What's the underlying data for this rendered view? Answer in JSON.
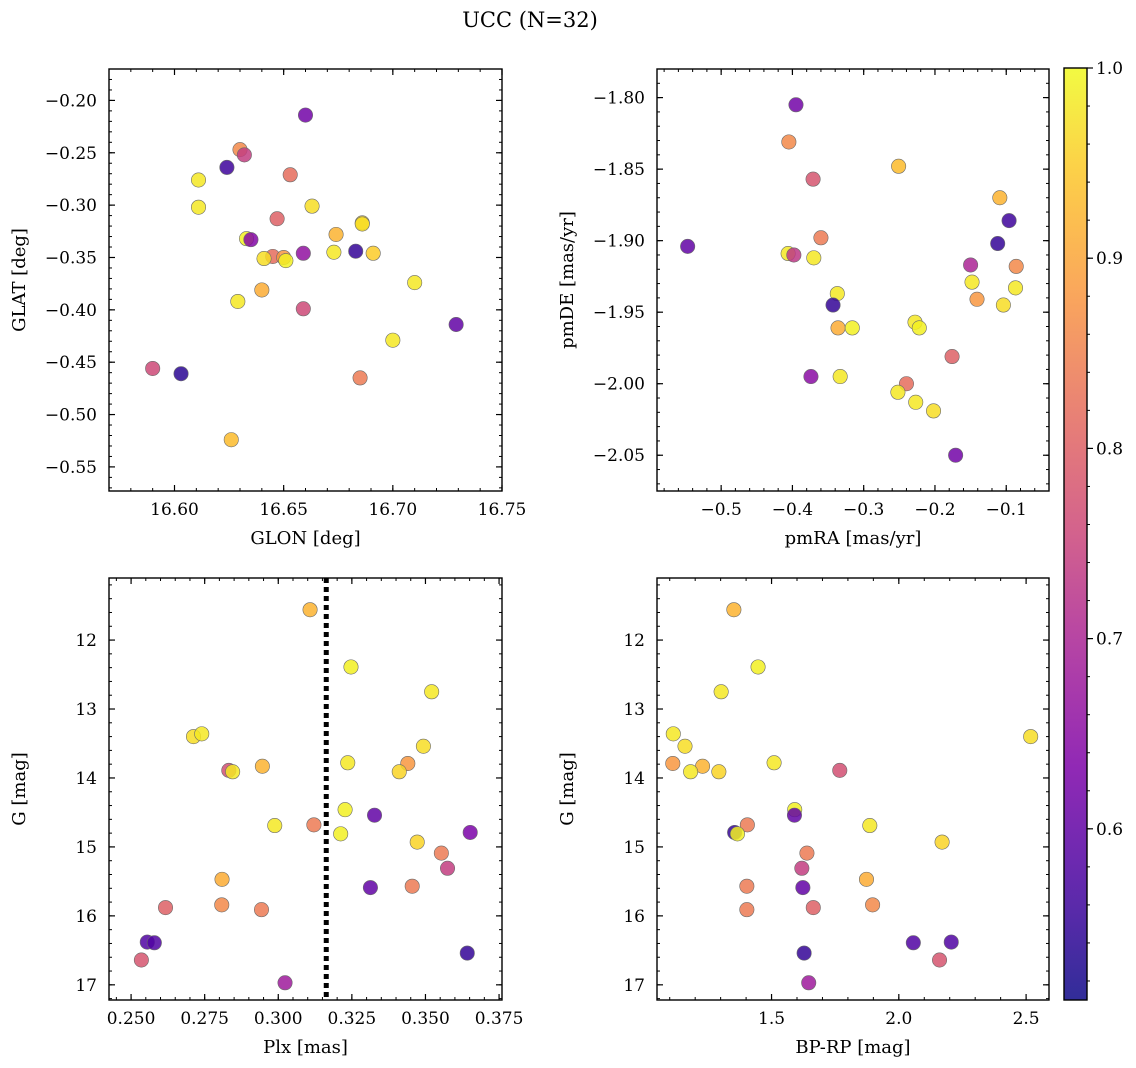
{
  "figure": {
    "title": "UCC (N=32)"
  },
  "colorbar": {
    "min": 0.51,
    "max": 1.0,
    "ticks": [
      0.6,
      0.7,
      0.8,
      0.9,
      1.0
    ],
    "tick_labels": [
      "0.6",
      "0.7",
      "0.8",
      "0.9",
      "1.0"
    ],
    "colormap": "plasma"
  },
  "chart_data": [
    {
      "id": "glon-glat",
      "type": "scatter",
      "xlabel": "GLON [deg]",
      "ylabel": "GLAT [deg]",
      "xlim": [
        16.57,
        16.75
      ],
      "ylim": [
        -0.573,
        -0.17
      ],
      "y_inverted": false,
      "xticks": [
        16.6,
        16.65,
        16.7,
        16.75
      ],
      "xtick_labels": [
        "16.60",
        "16.65",
        "16.70",
        "16.75"
      ],
      "yticks": [
        -0.55,
        -0.5,
        -0.45,
        -0.4,
        -0.35,
        -0.3,
        -0.25,
        -0.2
      ],
      "ytick_labels": [
        "−0.55",
        "−0.50",
        "−0.45",
        "−0.40",
        "−0.35",
        "−0.30",
        "−0.25",
        "−0.20"
      ],
      "points": [
        {
          "x": 16.66,
          "y": -0.214,
          "c": 0.62
        },
        {
          "x": 16.63,
          "y": -0.247,
          "c": 0.86
        },
        {
          "x": 16.632,
          "y": -0.252,
          "c": 0.74
        },
        {
          "x": 16.624,
          "y": -0.264,
          "c": 0.56
        },
        {
          "x": 16.653,
          "y": -0.271,
          "c": 0.82
        },
        {
          "x": 16.611,
          "y": -0.276,
          "c": 0.98
        },
        {
          "x": 16.611,
          "y": -0.302,
          "c": 0.98
        },
        {
          "x": 16.663,
          "y": -0.301,
          "c": 0.97
        },
        {
          "x": 16.647,
          "y": -0.313,
          "c": 0.8
        },
        {
          "x": 16.686,
          "y": -0.317,
          "c": 0.96
        },
        {
          "x": 16.686,
          "y": -0.318,
          "c": 0.97
        },
        {
          "x": 16.674,
          "y": -0.328,
          "c": 0.92
        },
        {
          "x": 16.633,
          "y": -0.332,
          "c": 0.99
        },
        {
          "x": 16.635,
          "y": -0.333,
          "c": 0.64
        },
        {
          "x": 16.683,
          "y": -0.344,
          "c": 0.55
        },
        {
          "x": 16.673,
          "y": -0.345,
          "c": 0.98
        },
        {
          "x": 16.691,
          "y": -0.346,
          "c": 0.95
        },
        {
          "x": 16.659,
          "y": -0.346,
          "c": 0.66
        },
        {
          "x": 16.645,
          "y": -0.349,
          "c": 0.82
        },
        {
          "x": 16.65,
          "y": -0.35,
          "c": 0.88
        },
        {
          "x": 16.641,
          "y": -0.351,
          "c": 0.97
        },
        {
          "x": 16.651,
          "y": -0.353,
          "c": 0.99
        },
        {
          "x": 16.71,
          "y": -0.374,
          "c": 0.98
        },
        {
          "x": 16.64,
          "y": -0.381,
          "c": 0.91
        },
        {
          "x": 16.629,
          "y": -0.392,
          "c": 0.98
        },
        {
          "x": 16.659,
          "y": -0.399,
          "c": 0.76
        },
        {
          "x": 16.729,
          "y": -0.414,
          "c": 0.6
        },
        {
          "x": 16.7,
          "y": -0.429,
          "c": 0.98
        },
        {
          "x": 16.59,
          "y": -0.456,
          "c": 0.76
        },
        {
          "x": 16.603,
          "y": -0.461,
          "c": 0.54
        },
        {
          "x": 16.685,
          "y": -0.465,
          "c": 0.84
        },
        {
          "x": 16.626,
          "y": -0.524,
          "c": 0.93
        }
      ]
    },
    {
      "id": "pmra-pmde",
      "type": "scatter",
      "xlabel": "pmRA [mas/yr]",
      "ylabel": "pmDE [mas/yr]",
      "xlim": [
        -0.59,
        -0.04
      ],
      "ylim": [
        -2.075,
        -1.78
      ],
      "y_inverted": false,
      "xticks": [
        -0.5,
        -0.4,
        -0.3,
        -0.2,
        -0.1
      ],
      "xtick_labels": [
        "−0.5",
        "−0.4",
        "−0.3",
        "−0.2",
        "−0.1"
      ],
      "yticks": [
        -2.05,
        -2.0,
        -1.95,
        -1.9,
        -1.85,
        -1.8
      ],
      "ytick_labels": [
        "−2.05",
        "−2.00",
        "−1.95",
        "−1.90",
        "−1.85",
        "−1.80"
      ],
      "points": [
        {
          "x": -0.395,
          "y": -1.805,
          "c": 0.62
        },
        {
          "x": -0.405,
          "y": -1.831,
          "c": 0.86
        },
        {
          "x": -0.251,
          "y": -1.848,
          "c": 0.93
        },
        {
          "x": -0.371,
          "y": -1.857,
          "c": 0.78
        },
        {
          "x": -0.109,
          "y": -1.87,
          "c": 0.92
        },
        {
          "x": -0.096,
          "y": -1.886,
          "c": 0.56
        },
        {
          "x": -0.36,
          "y": -1.898,
          "c": 0.84
        },
        {
          "x": -0.112,
          "y": -1.902,
          "c": 0.55
        },
        {
          "x": -0.547,
          "y": -1.904,
          "c": 0.6
        },
        {
          "x": -0.406,
          "y": -1.909,
          "c": 0.98
        },
        {
          "x": -0.398,
          "y": -1.91,
          "c": 0.73
        },
        {
          "x": -0.37,
          "y": -1.912,
          "c": 0.98
        },
        {
          "x": -0.15,
          "y": -1.917,
          "c": 0.7
        },
        {
          "x": -0.086,
          "y": -1.918,
          "c": 0.86
        },
        {
          "x": -0.148,
          "y": -1.929,
          "c": 0.98
        },
        {
          "x": -0.087,
          "y": -1.933,
          "c": 0.98
        },
        {
          "x": -0.337,
          "y": -1.937,
          "c": 0.98
        },
        {
          "x": -0.141,
          "y": -1.941,
          "c": 0.88
        },
        {
          "x": -0.104,
          "y": -1.945,
          "c": 0.97
        },
        {
          "x": -0.343,
          "y": -1.945,
          "c": 0.55
        },
        {
          "x": -0.228,
          "y": -1.957,
          "c": 0.98
        },
        {
          "x": -0.336,
          "y": -1.961,
          "c": 0.91
        },
        {
          "x": -0.316,
          "y": -1.961,
          "c": 0.99
        },
        {
          "x": -0.222,
          "y": -1.961,
          "c": 0.99
        },
        {
          "x": -0.176,
          "y": -1.981,
          "c": 0.8
        },
        {
          "x": -0.374,
          "y": -1.995,
          "c": 0.65
        },
        {
          "x": -0.333,
          "y": -1.995,
          "c": 0.98
        },
        {
          "x": -0.24,
          "y": -2.0,
          "c": 0.82
        },
        {
          "x": -0.252,
          "y": -2.006,
          "c": 0.98
        },
        {
          "x": -0.227,
          "y": -2.013,
          "c": 0.98
        },
        {
          "x": -0.202,
          "y": -2.019,
          "c": 0.97
        },
        {
          "x": -0.171,
          "y": -2.05,
          "c": 0.62
        }
      ]
    },
    {
      "id": "plx-g",
      "type": "scatter",
      "xlabel": "Plx [mas]",
      "ylabel": "G [mag]",
      "xlim": [
        0.2425,
        0.376
      ],
      "ylim": [
        17.22,
        11.1
      ],
      "y_inverted": true,
      "vline": 0.3163,
      "xticks": [
        0.25,
        0.275,
        0.3,
        0.325,
        0.35,
        0.375
      ],
      "xtick_labels": [
        "0.250",
        "0.275",
        "0.300",
        "0.325",
        "0.350",
        "0.375"
      ],
      "yticks": [
        12,
        13,
        14,
        15,
        16,
        17
      ],
      "ytick_labels": [
        "12",
        "13",
        "14",
        "15",
        "16",
        "17"
      ],
      "points": [
        {
          "x": 0.3108,
          "y": 11.56,
          "c": 0.92
        },
        {
          "x": 0.3247,
          "y": 12.39,
          "c": 0.99
        },
        {
          "x": 0.3521,
          "y": 12.75,
          "c": 0.98
        },
        {
          "x": 0.2712,
          "y": 13.4,
          "c": 0.97
        },
        {
          "x": 0.274,
          "y": 13.36,
          "c": 0.98
        },
        {
          "x": 0.3493,
          "y": 13.54,
          "c": 0.97
        },
        {
          "x": 0.344,
          "y": 13.79,
          "c": 0.88
        },
        {
          "x": 0.3236,
          "y": 13.78,
          "c": 0.98
        },
        {
          "x": 0.2946,
          "y": 13.83,
          "c": 0.92
        },
        {
          "x": 0.2832,
          "y": 13.89,
          "c": 0.77
        },
        {
          "x": 0.2845,
          "y": 13.91,
          "c": 0.98
        },
        {
          "x": 0.3411,
          "y": 13.91,
          "c": 0.96
        },
        {
          "x": 0.3227,
          "y": 14.46,
          "c": 0.99
        },
        {
          "x": 0.3327,
          "y": 14.54,
          "c": 0.6
        },
        {
          "x": 0.3121,
          "y": 14.68,
          "c": 0.84
        },
        {
          "x": 0.2988,
          "y": 14.69,
          "c": 0.98
        },
        {
          "x": 0.3652,
          "y": 14.79,
          "c": 0.63
        },
        {
          "x": 0.3212,
          "y": 14.81,
          "c": 0.99
        },
        {
          "x": 0.3472,
          "y": 14.93,
          "c": 0.96
        },
        {
          "x": 0.3554,
          "y": 15.09,
          "c": 0.84
        },
        {
          "x": 0.3575,
          "y": 15.31,
          "c": 0.74
        },
        {
          "x": 0.2809,
          "y": 15.47,
          "c": 0.91
        },
        {
          "x": 0.3455,
          "y": 15.57,
          "c": 0.84
        },
        {
          "x": 0.3313,
          "y": 15.59,
          "c": 0.6
        },
        {
          "x": 0.2808,
          "y": 15.84,
          "c": 0.86
        },
        {
          "x": 0.2617,
          "y": 15.88,
          "c": 0.8
        },
        {
          "x": 0.2943,
          "y": 15.91,
          "c": 0.84
        },
        {
          "x": 0.2555,
          "y": 16.38,
          "c": 0.58
        },
        {
          "x": 0.2579,
          "y": 16.39,
          "c": 0.58
        },
        {
          "x": 0.3642,
          "y": 16.54,
          "c": 0.55
        },
        {
          "x": 0.2535,
          "y": 16.64,
          "c": 0.78
        },
        {
          "x": 0.3023,
          "y": 16.97,
          "c": 0.68
        }
      ]
    },
    {
      "id": "bprp-g",
      "type": "scatter",
      "xlabel": "BP-RP [mag]",
      "ylabel": "G [mag]",
      "xlim": [
        1.05,
        2.59
      ],
      "ylim": [
        17.22,
        11.1
      ],
      "y_inverted": true,
      "xticks": [
        1.5,
        2.0,
        2.5
      ],
      "xtick_labels": [
        "1.5",
        "2.0",
        "2.5"
      ],
      "yticks": [
        12,
        13,
        14,
        15,
        16,
        17
      ],
      "ytick_labels": [
        "12",
        "13",
        "14",
        "15",
        "16",
        "17"
      ],
      "points": [
        {
          "x": 1.352,
          "y": 11.56,
          "c": 0.92
        },
        {
          "x": 1.447,
          "y": 12.39,
          "c": 0.99
        },
        {
          "x": 1.302,
          "y": 12.75,
          "c": 0.98
        },
        {
          "x": 1.114,
          "y": 13.36,
          "c": 0.98
        },
        {
          "x": 2.518,
          "y": 13.4,
          "c": 0.97
        },
        {
          "x": 1.16,
          "y": 13.54,
          "c": 0.97
        },
        {
          "x": 1.112,
          "y": 13.79,
          "c": 0.88
        },
        {
          "x": 1.51,
          "y": 13.78,
          "c": 0.98
        },
        {
          "x": 1.229,
          "y": 13.83,
          "c": 0.92
        },
        {
          "x": 1.768,
          "y": 13.89,
          "c": 0.77
        },
        {
          "x": 1.182,
          "y": 13.91,
          "c": 0.98
        },
        {
          "x": 1.293,
          "y": 13.91,
          "c": 0.96
        },
        {
          "x": 1.591,
          "y": 14.46,
          "c": 0.99
        },
        {
          "x": 1.59,
          "y": 14.54,
          "c": 0.6
        },
        {
          "x": 1.405,
          "y": 14.68,
          "c": 0.84
        },
        {
          "x": 1.886,
          "y": 14.69,
          "c": 0.98
        },
        {
          "x": 1.355,
          "y": 14.79,
          "c": 0.55
        },
        {
          "x": 1.366,
          "y": 14.81,
          "c": 0.99
        },
        {
          "x": 2.17,
          "y": 14.93,
          "c": 0.96
        },
        {
          "x": 1.639,
          "y": 15.09,
          "c": 0.84
        },
        {
          "x": 1.619,
          "y": 15.31,
          "c": 0.74
        },
        {
          "x": 1.873,
          "y": 15.47,
          "c": 0.91
        },
        {
          "x": 1.403,
          "y": 15.57,
          "c": 0.84
        },
        {
          "x": 1.623,
          "y": 15.59,
          "c": 0.6
        },
        {
          "x": 1.897,
          "y": 15.84,
          "c": 0.86
        },
        {
          "x": 1.664,
          "y": 15.88,
          "c": 0.8
        },
        {
          "x": 1.403,
          "y": 15.91,
          "c": 0.84
        },
        {
          "x": 2.206,
          "y": 16.38,
          "c": 0.58
        },
        {
          "x": 2.057,
          "y": 16.39,
          "c": 0.58
        },
        {
          "x": 1.628,
          "y": 16.54,
          "c": 0.55
        },
        {
          "x": 2.16,
          "y": 16.64,
          "c": 0.78
        },
        {
          "x": 1.646,
          "y": 16.97,
          "c": 0.68
        }
      ]
    }
  ]
}
